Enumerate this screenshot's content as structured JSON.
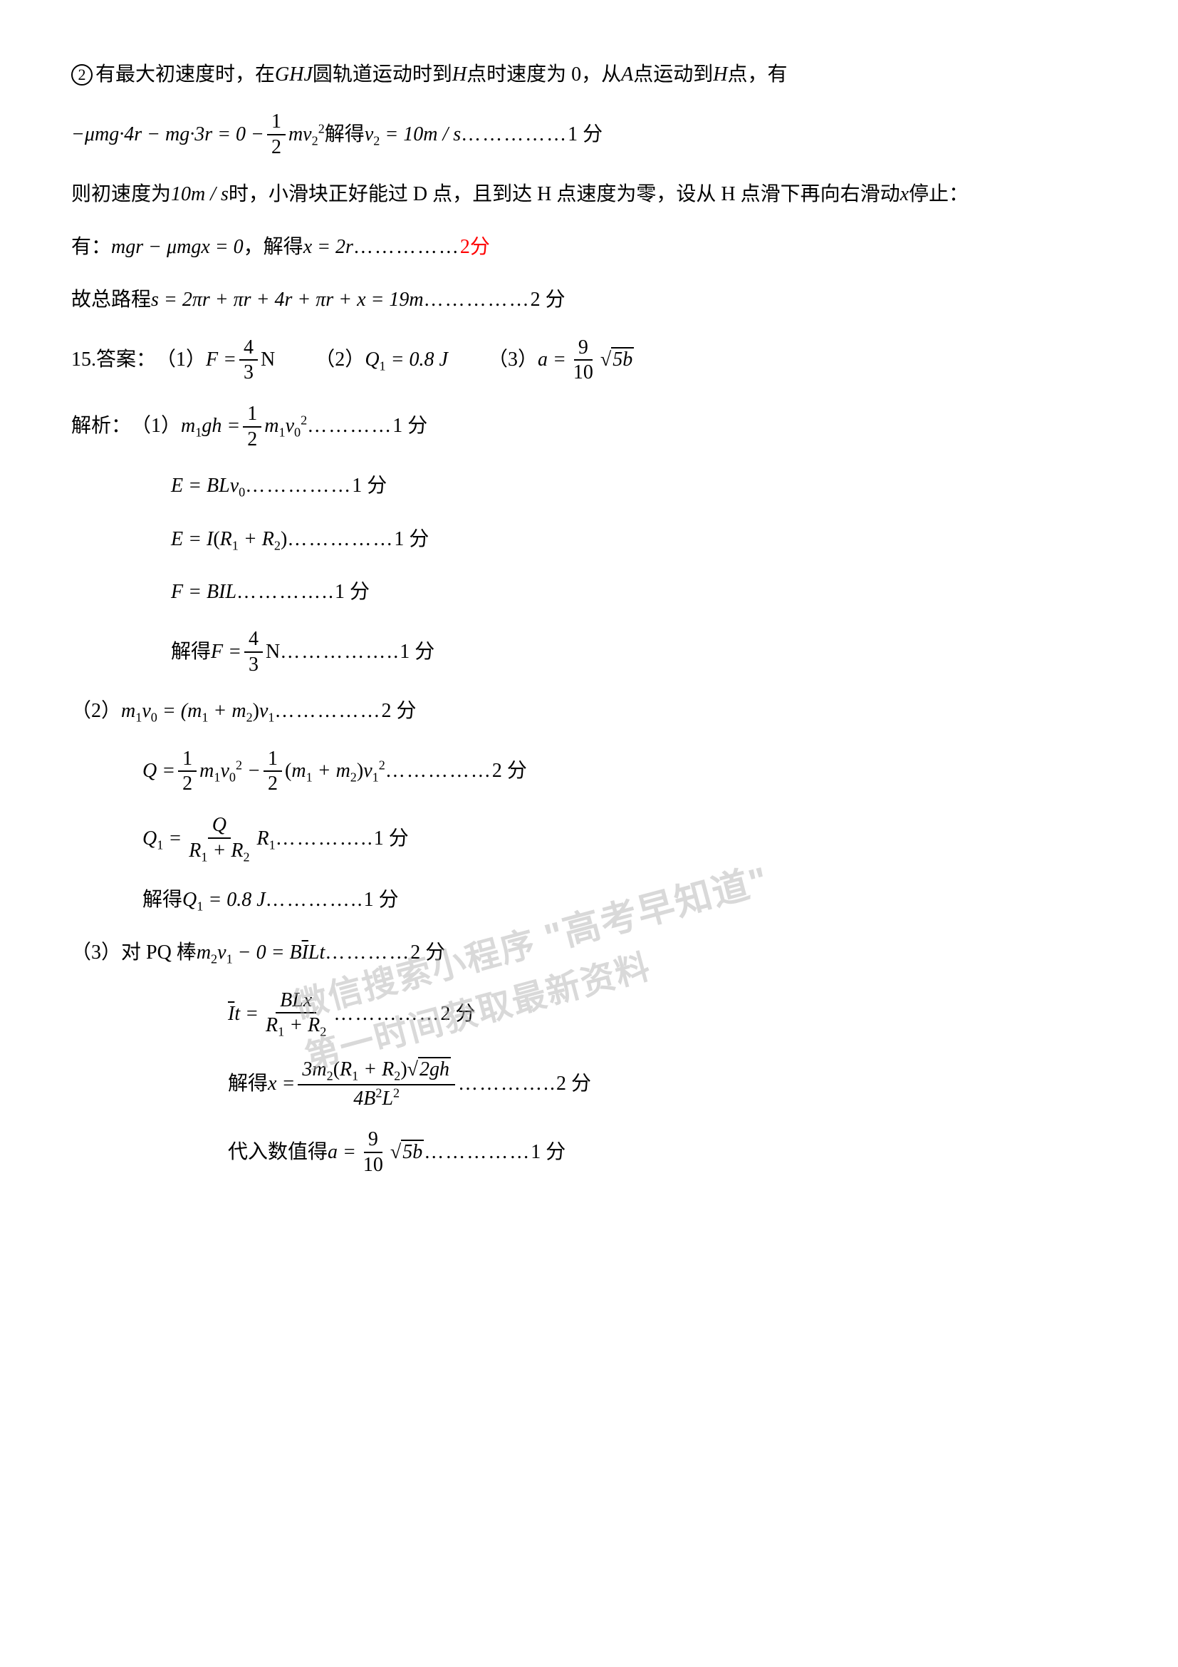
{
  "line1": {
    "circled": "2",
    "text_a": "有最大初速度时，在 ",
    "text_b": " 圆轨道运动时到 ",
    "text_c": " 点时速度为 0，从 ",
    "text_d": " 点运动到 ",
    "text_e": " 点，有",
    "ghj": "GHJ",
    "h1": "H",
    "a": "A",
    "h2": "H"
  },
  "line2": {
    "eq_prefix": "−",
    "mu": "μ",
    "mg": "mg",
    "dot": "·",
    "r4": "4r",
    "minus": " − ",
    "r3": "3r",
    "eq": " = 0 − ",
    "half_num": "1",
    "half_den": "2",
    "mv": "mv",
    "sub2": "2",
    "sup2": "2",
    "solve": "解得 ",
    "v2": "v",
    "eq10": " = 10",
    "ms": "m / s",
    "dots": " ……………",
    "score": "1 分"
  },
  "line3": {
    "text_a": "则初速度为",
    "speed": "10m / s",
    "text_b": " 时，小滑块正好能过 D 点，且到达 H 点速度为零，设从 H 点滑下再向右滑动 ",
    "x": "x",
    "text_c": " 停止："
  },
  "line4": {
    "text_a": "有：",
    "mgr": "mgr",
    "minus": " − ",
    "mu": "μ",
    "mgx": "mgx",
    "eq0": " = 0",
    "comma": " ，解得 ",
    "x": "x",
    "eq2r": " = 2r",
    "dots": " ……………",
    "score": "2分"
  },
  "line5": {
    "text_a": "故总路程 ",
    "s": "s",
    "eq": " = ",
    "expr": "2πr + πr + 4r + πr + x = 19m",
    "dots": " ……………",
    "score": "2 分"
  },
  "line6": {
    "num": "15.",
    "ans": "答案：",
    "p1": "（1）",
    "F": "F",
    "eq": " = ",
    "frac_num": "4",
    "frac_den": "3",
    "N": " N",
    "sp1": "　　",
    "p2": "（2）",
    "Q1": "Q",
    "sub1": "1",
    "eq08": " = 0.8 J",
    "sp2": "　　",
    "p3": "（3）",
    "a": "a",
    "eq2": " = ",
    "frac2_num": "9",
    "frac2_den": "10",
    "sqrt_sym": "√",
    "sqrt_content": "5b"
  },
  "line7": {
    "text": "解析：",
    "p1": "（1）",
    "m1gh": "m",
    "sub1": "1",
    "gh": "gh",
    "eq": " = ",
    "half_num": "1",
    "half_den": "2",
    "m1": "m",
    "v0": "v",
    "sub0": "0",
    "sup2": "2",
    "dots": " …………",
    "score": "1 分"
  },
  "line8": {
    "E": "E",
    "eq": " = ",
    "BLv": "BLv",
    "sub0": "0",
    "dots": "……………",
    "score": "1 分"
  },
  "line9": {
    "E": "E",
    "eq": " = ",
    "I": "I",
    "lp": "(",
    "R1": "R",
    "sub1": "1",
    "plus": " + ",
    "R2": "R",
    "sub2": "2",
    "rp": ")",
    "dots": " ……………",
    "score": "1 分"
  },
  "line10": {
    "F": "F",
    "eq": " = ",
    "BIL": "BIL",
    "dots": " …………..",
    "score": "1 分"
  },
  "line11": {
    "text": "解得 ",
    "F": "F",
    "eq": " = ",
    "frac_num": "4",
    "frac_den": "3",
    "N": " N",
    "dots": "……………..",
    "score": "1 分"
  },
  "line12": {
    "p2": "（2）",
    "m1": "m",
    "sub1a": "1",
    "v0": "v",
    "sub0": "0",
    "eq": " = (",
    "m1b": "m",
    "sub1b": "1",
    "plus": " + ",
    "m2": "m",
    "sub2": "2",
    "rp": ")",
    "v1": "v",
    "sub1c": "1",
    "dots": " ……………",
    "score": "2 分"
  },
  "line13": {
    "Q": "Q",
    "eq": " = ",
    "half1_num": "1",
    "half1_den": "2",
    "m1": "m",
    "sub1": "1",
    "v0": "v",
    "sub0": "0",
    "sup2a": "2",
    "minus": " − ",
    "half2_num": "1",
    "half2_den": "2",
    "lp": "(",
    "m1b": "m",
    "sub1b": "1",
    "plus": " + ",
    "m2": "m",
    "sub2": "2",
    "rp": ")",
    "v1": "v",
    "sub1c": "1",
    "sup2b": "2",
    "dots": " ……………",
    "score": "2 分"
  },
  "line14": {
    "Q1": "Q",
    "sub1": "1",
    "eq": " = ",
    "frac_num_Q": "Q",
    "frac_den_R1": "R",
    "frac_den_sub1": "1",
    "frac_den_plus": " + ",
    "frac_den_R2": "R",
    "frac_den_sub2": "2",
    "R1": "R",
    "sub1b": "1",
    "dots": "…………..",
    "score": "1 分"
  },
  "line15": {
    "text": "解得 ",
    "Q1": "Q",
    "sub1": "1",
    "eq": " = 0.8 J",
    "dots": "…………..",
    "score": "1 分"
  },
  "line16": {
    "p3": "（3）",
    "text": "对 PQ 棒 ",
    "m2": "m",
    "sub2": "2",
    "v1": "v",
    "sub1": "1",
    "minus0": " − 0 = ",
    "B": "B",
    "Ibar": "I",
    "Lt": "Lt",
    "dots": " …………",
    "score": "2 分"
  },
  "line17": {
    "Ibar": "I",
    "t": "t",
    "eq": " = ",
    "frac_num": "BLx",
    "frac_den_R1": "R",
    "frac_den_sub1": "1",
    "frac_den_plus": " + ",
    "frac_den_R2": "R",
    "frac_den_sub2": "2",
    "dots": " ……………",
    "score": "2 分"
  },
  "line18": {
    "text": "解得 ",
    "x": "x",
    "eq": " = ",
    "num_3m2": "3m",
    "num_sub2": "2",
    "num_lp": "(",
    "num_R1": "R",
    "num_sub1": "1",
    "num_plus": " + ",
    "num_R2": "R",
    "num_sub2b": "2",
    "num_rp": ")",
    "num_sqrt_sym": "√",
    "num_sqrt_content": "2gh",
    "den_4B2L2": "4B",
    "den_sup2a": "2",
    "den_L": "L",
    "den_sup2b": "2",
    "dots": " …………..",
    "score": "2 分"
  },
  "line19": {
    "text": "代入数值得 ",
    "a": "a",
    "eq": " = ",
    "frac_num": "9",
    "frac_den": "10",
    "sqrt_sym": "√",
    "sqrt_content": "5b",
    "dots": " ……………",
    "score": "1 分"
  },
  "watermark": {
    "line1_a": "微信搜索小程序",
    "line1_b": "\"高考早知道\"",
    "line2": "第一时间获取最新资料"
  }
}
